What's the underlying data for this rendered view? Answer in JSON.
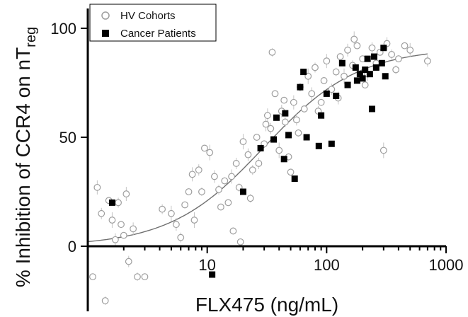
{
  "chart_data": {
    "type": "scatter",
    "xlabel": "FLX475 (ng/mL)",
    "ylabel_main": "% Inhibition of CCR4 on nT",
    "ylabel_sub": "reg",
    "x_scale": "log",
    "xlim": [
      1,
      1000
    ],
    "ylim": [
      -25,
      110
    ],
    "x_ticks": [
      {
        "value": 10,
        "label": "10"
      },
      {
        "value": 100,
        "label": "100"
      },
      {
        "value": 1000,
        "label": "1000"
      }
    ],
    "y_ticks": [
      {
        "value": 0,
        "label": "0"
      },
      {
        "value": 50,
        "label": "50"
      },
      {
        "value": 100,
        "label": "100"
      }
    ],
    "grid": false,
    "legend": {
      "position": "top-left",
      "items": [
        {
          "label": "HV Cohorts",
          "marker": "open-circle",
          "color": "#9e9e9e"
        },
        {
          "label": "Cancer Patients",
          "marker": "filled-square",
          "color": "#000000"
        }
      ]
    },
    "series": [
      {
        "name": "HV Cohorts",
        "marker": "open-circle",
        "color": "#9e9e9e",
        "error_bars": true,
        "points": [
          [
            1.1,
            -14
          ],
          [
            1.2,
            27
          ],
          [
            1.3,
            15
          ],
          [
            1.4,
            -25
          ],
          [
            1.5,
            21
          ],
          [
            1.6,
            12
          ],
          [
            1.7,
            3
          ],
          [
            1.8,
            20
          ],
          [
            1.9,
            10
          ],
          [
            2.0,
            5
          ],
          [
            2.1,
            24
          ],
          [
            2.2,
            -7
          ],
          [
            2.6,
            -14
          ],
          [
            3.0,
            -14
          ],
          [
            5.0,
            15
          ],
          [
            5.5,
            10
          ],
          [
            6.0,
            4
          ],
          [
            6.5,
            19
          ],
          [
            7.0,
            25
          ],
          [
            7.5,
            33
          ],
          [
            8.5,
            35
          ],
          [
            9.0,
            25
          ],
          [
            9.5,
            45
          ],
          [
            10.5,
            43
          ],
          [
            11.5,
            32
          ],
          [
            12.5,
            26
          ],
          [
            14.0,
            30
          ],
          [
            15.0,
            20
          ],
          [
            16.0,
            32
          ],
          [
            17.5,
            38
          ],
          [
            18.5,
            27
          ],
          [
            19.0,
            2
          ],
          [
            20.0,
            48
          ],
          [
            22.0,
            42
          ],
          [
            24.0,
            35
          ],
          [
            26.0,
            50
          ],
          [
            30.0,
            47
          ],
          [
            32.0,
            60
          ],
          [
            34.0,
            54
          ],
          [
            35.0,
            89
          ],
          [
            37.0,
            70
          ],
          [
            40.0,
            44
          ],
          [
            42.0,
            62
          ],
          [
            45.0,
            57
          ],
          [
            48.0,
            41
          ],
          [
            50.0,
            34
          ],
          [
            53.0,
            66
          ],
          [
            56.0,
            58
          ],
          [
            60.0,
            73
          ],
          [
            65.0,
            63
          ],
          [
            70.0,
            78
          ],
          [
            75.0,
            70
          ],
          [
            80.0,
            82
          ],
          [
            90.0,
            66
          ],
          [
            95.0,
            76
          ],
          [
            100.0,
            85
          ],
          [
            110.0,
            72
          ],
          [
            120.0,
            80
          ],
          [
            130.0,
            87
          ],
          [
            140.0,
            78
          ],
          [
            150.0,
            90
          ],
          [
            165.0,
            83
          ],
          [
            180.0,
            92
          ],
          [
            200.0,
            86
          ],
          [
            220.0,
            79
          ],
          [
            240.0,
            91
          ],
          [
            260.0,
            84
          ],
          [
            280.0,
            89
          ],
          [
            300.0,
            44
          ],
          [
            320.0,
            93
          ],
          [
            350.0,
            88
          ],
          [
            400.0,
            86
          ],
          [
            450.0,
            92
          ],
          [
            500.0,
            90
          ],
          [
            700.0,
            85
          ],
          [
            380.0,
            81
          ],
          [
            210.0,
            74
          ],
          [
            170.0,
            95
          ],
          [
            125.0,
            68
          ],
          [
            85.0,
            62
          ],
          [
            58.0,
            52
          ],
          [
            44.0,
            67
          ],
          [
            31.0,
            56
          ],
          [
            27.0,
            38
          ],
          [
            23.0,
            22
          ],
          [
            13.0,
            18
          ],
          [
            7.8,
            12
          ],
          [
            2.4,
            8
          ],
          [
            4.2,
            17
          ],
          [
            16.5,
            7
          ]
        ]
      },
      {
        "name": "Cancer Patients",
        "marker": "filled-square",
        "color": "#000000",
        "points": [
          [
            1.6,
            20
          ],
          [
            11.0,
            -13
          ],
          [
            20.0,
            25
          ],
          [
            28.0,
            45
          ],
          [
            36.0,
            49
          ],
          [
            38.0,
            59
          ],
          [
            44.0,
            40
          ],
          [
            45.0,
            61
          ],
          [
            48.0,
            51
          ],
          [
            54.0,
            31
          ],
          [
            60.0,
            73
          ],
          [
            64.0,
            80
          ],
          [
            68.0,
            50
          ],
          [
            86.0,
            46
          ],
          [
            90.0,
            60
          ],
          [
            100.0,
            70
          ],
          [
            110.0,
            47
          ],
          [
            120.0,
            69
          ],
          [
            135.0,
            84
          ],
          [
            150.0,
            74
          ],
          [
            175.0,
            82
          ],
          [
            180.0,
            76
          ],
          [
            190.0,
            79
          ],
          [
            200.0,
            77
          ],
          [
            210.0,
            81
          ],
          [
            220.0,
            86
          ],
          [
            230.0,
            79
          ],
          [
            240.0,
            63
          ],
          [
            250.0,
            87
          ],
          [
            260.0,
            82
          ],
          [
            290.0,
            84
          ],
          [
            300.0,
            91
          ],
          [
            310.0,
            78
          ]
        ]
      }
    ],
    "fit_curve": {
      "type": "sigmoid",
      "color": "#707070",
      "bottom": 0,
      "top": 91,
      "ec50": 30,
      "hill": 1.1
    }
  }
}
